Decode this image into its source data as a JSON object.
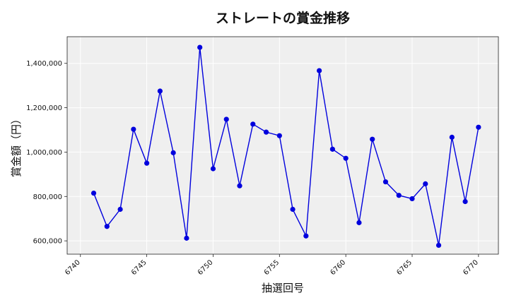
{
  "chart_data": {
    "type": "line",
    "title": "ストレートの賞金推移",
    "xlabel": "抽選回号",
    "ylabel": "賞金額（円）",
    "x": [
      6741,
      6742,
      6743,
      6744,
      6745,
      6746,
      6747,
      6748,
      6749,
      6750,
      6751,
      6752,
      6753,
      6754,
      6755,
      6756,
      6757,
      6758,
      6759,
      6760,
      6761,
      6762,
      6763,
      6764,
      6765,
      6766,
      6767,
      6768,
      6769,
      6770
    ],
    "series": [
      {
        "values": [
          815000,
          665000,
          742000,
          1103000,
          950000,
          1275000,
          997000,
          612000,
          1472000,
          925000,
          1148000,
          848000,
          1126000,
          1090000,
          1074000,
          742000,
          622000,
          1367000,
          1013000,
          972000,
          682000,
          1058000,
          866000,
          805000,
          790000,
          857000,
          580000,
          1067000,
          777000,
          1112000
        ],
        "color": "#0000dd"
      }
    ],
    "xlim": [
      6739.0,
      6771.5
    ],
    "ylim": [
      540000,
      1520000
    ],
    "xticks": [
      6740,
      6745,
      6750,
      6755,
      6760,
      6765,
      6770
    ],
    "yticks": [
      600000,
      800000,
      1000000,
      1200000,
      1400000
    ],
    "ytick_labels": [
      "600,000",
      "800,000",
      "1,000,000",
      "1,200,000",
      "1,400,000"
    ],
    "grid": true,
    "background": "#efefef"
  }
}
